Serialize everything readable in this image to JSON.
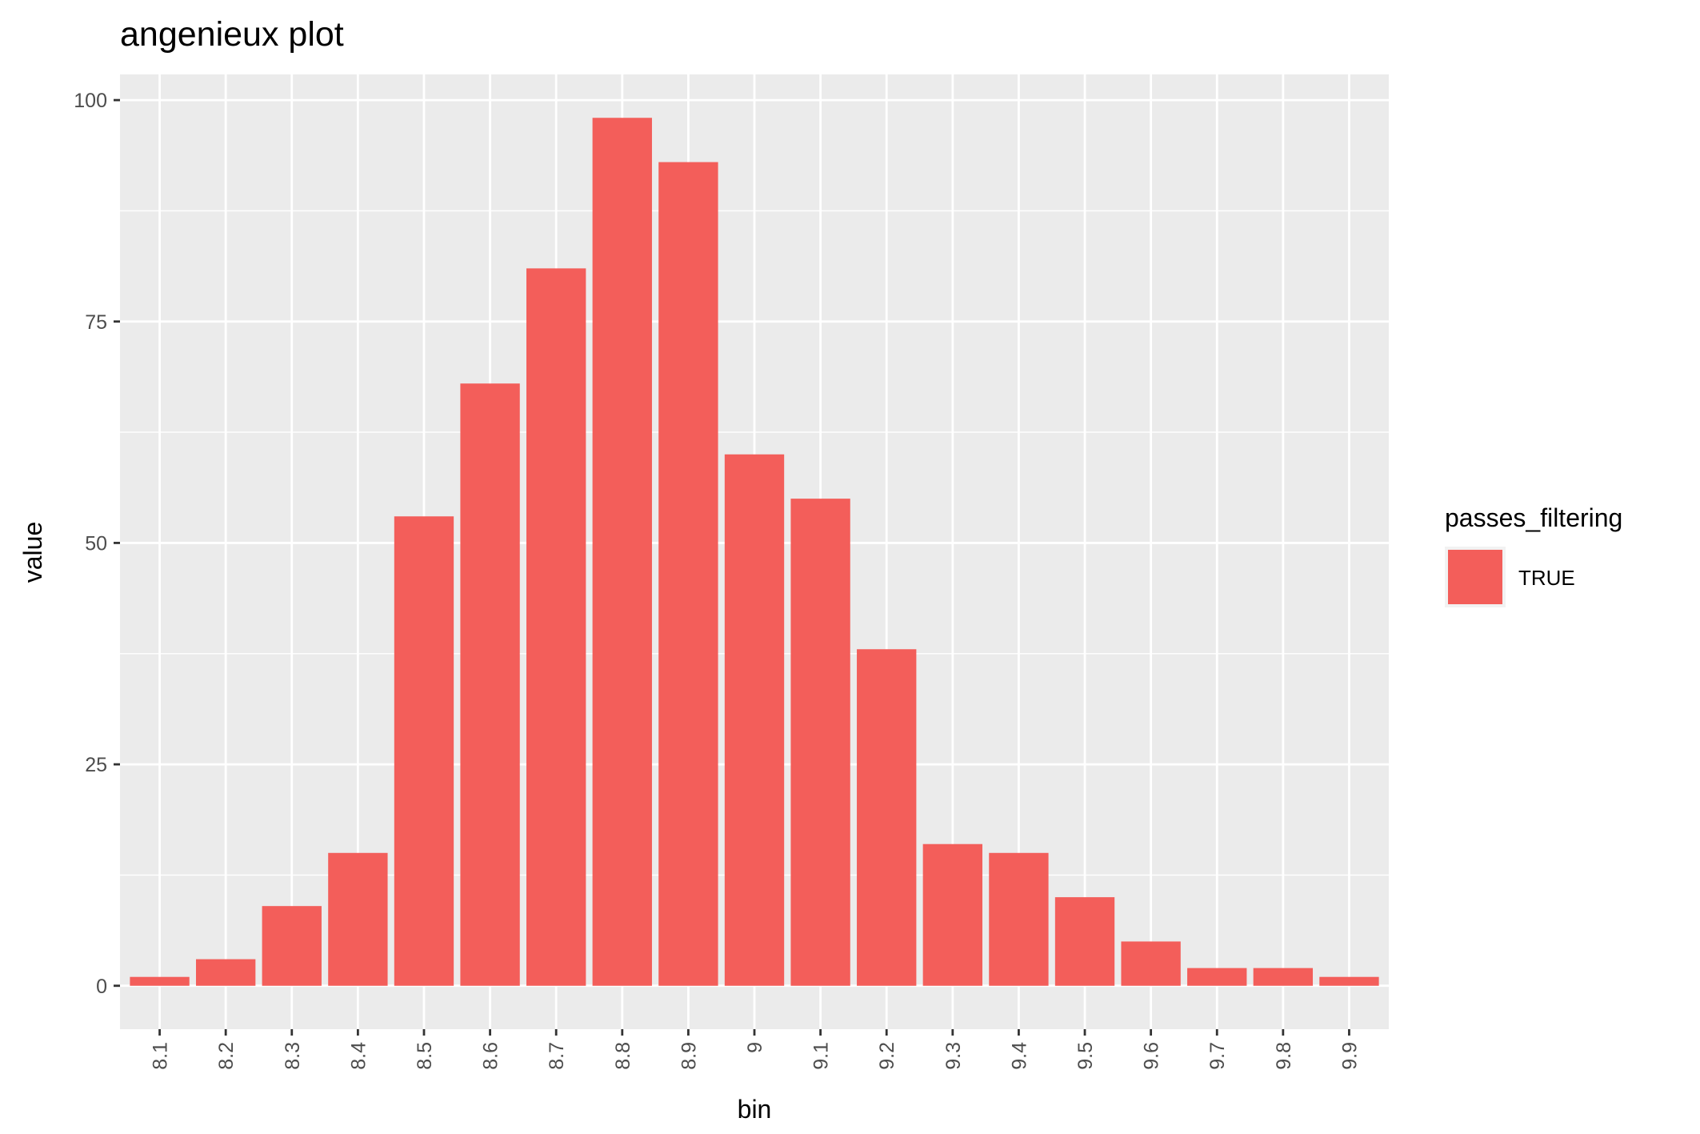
{
  "chart_data": {
    "type": "bar",
    "title": "angenieux plot",
    "xlabel": "bin",
    "ylabel": "value",
    "categories": [
      "8.1",
      "8.2",
      "8.3",
      "8.4",
      "8.5",
      "8.6",
      "8.7",
      "8.8",
      "8.9",
      "9",
      "9.1",
      "9.2",
      "9.3",
      "9.4",
      "9.5",
      "9.6",
      "9.7",
      "9.8",
      "9.9"
    ],
    "series": [
      {
        "name": "TRUE",
        "values": [
          1,
          3,
          9,
          15,
          53,
          68,
          81,
          98,
          93,
          60,
          55,
          38,
          16,
          15,
          10,
          5,
          2,
          2,
          1
        ]
      }
    ],
    "yticks": [
      0,
      25,
      50,
      75,
      100
    ],
    "ylim": [
      -4.9,
      102.9
    ],
    "grid": true,
    "legend": {
      "title": "passes_filtering",
      "position": "right"
    },
    "colors": {
      "bar": "#F35E5A",
      "panel": "#EBEBEB",
      "grid": "#FFFFFF"
    }
  }
}
